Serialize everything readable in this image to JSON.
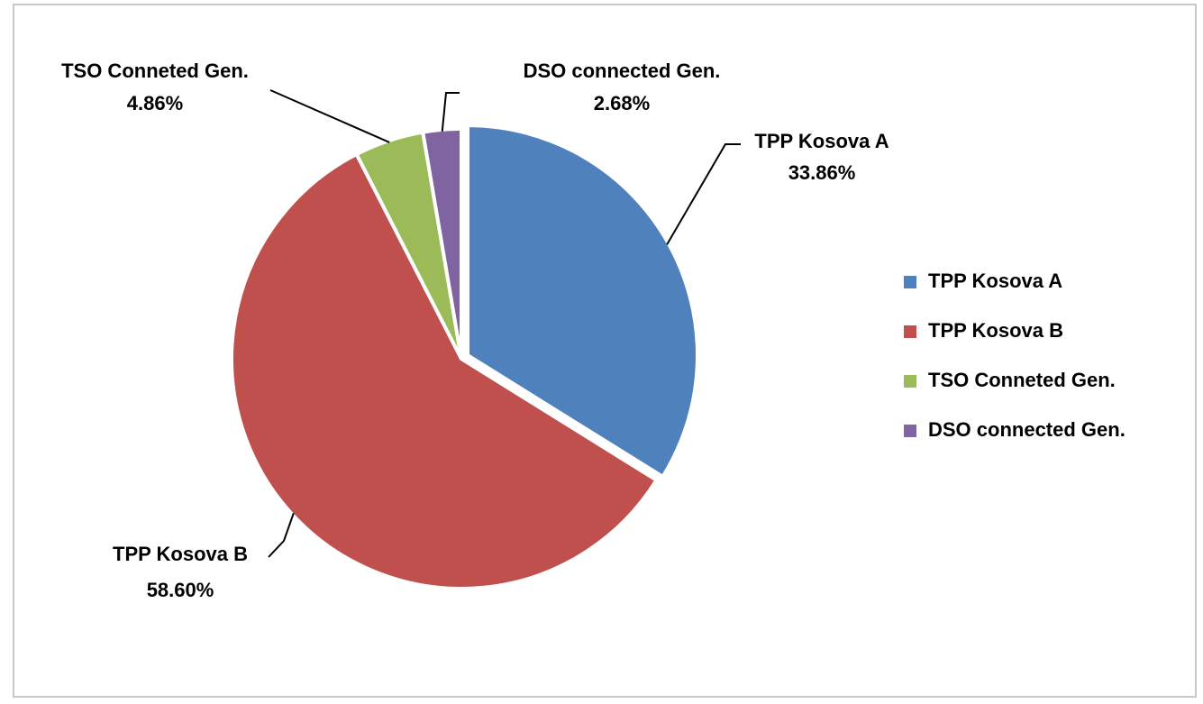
{
  "chart_data": {
    "type": "pie",
    "categories": [
      "TPP Kosova A",
      "TPP Kosova B",
      "TSO Conneted Gen.",
      "DSO connected Gen."
    ],
    "values": [
      33.86,
      58.6,
      4.86,
      2.68
    ],
    "value_labels": [
      "33.86%",
      "58.60%",
      "4.86%",
      "2.68%"
    ],
    "colors": [
      "#4f81bd",
      "#c0504d",
      "#9bbb59",
      "#8064a2"
    ],
    "legend": "right"
  }
}
